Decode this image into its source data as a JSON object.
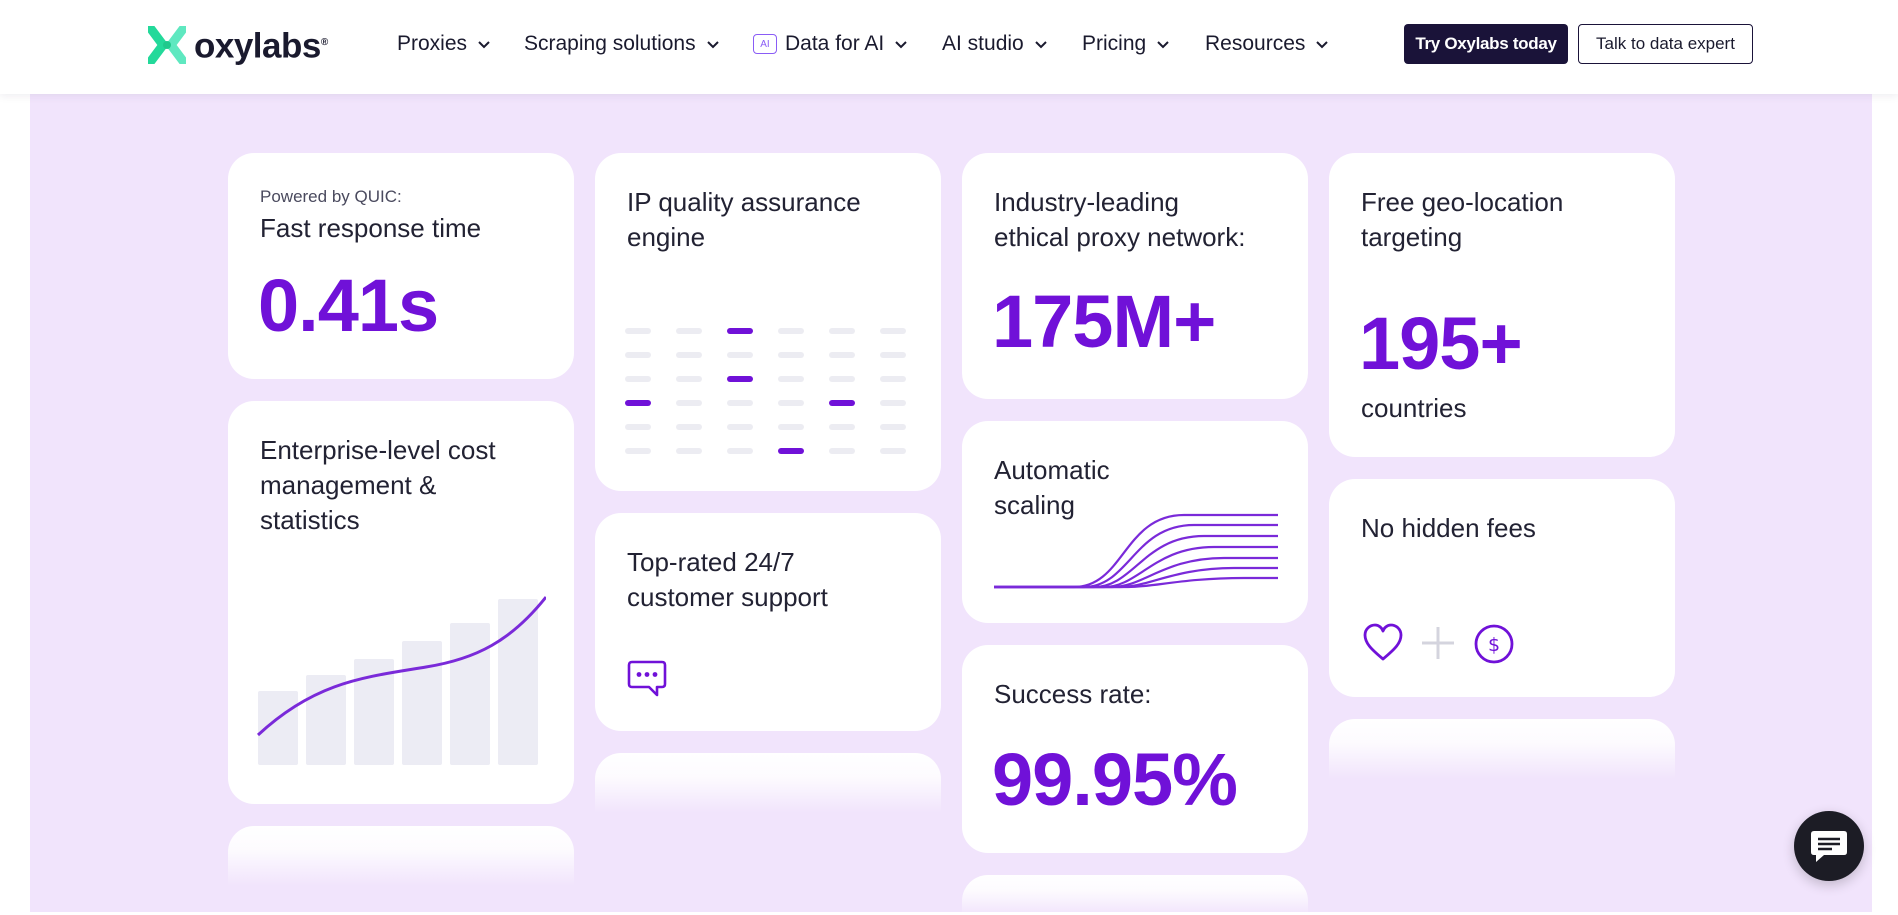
{
  "header": {
    "logo_text": "oxylabs",
    "logo_mark": "®",
    "nav": [
      {
        "label": "Proxies",
        "icon": "chevron-down-icon"
      },
      {
        "label": "Scraping solutions",
        "icon": "chevron-down-icon"
      },
      {
        "label": "Data for AI",
        "badge": "AI",
        "icon": "chevron-down-icon"
      },
      {
        "label": "AI studio",
        "icon": "chevron-down-icon"
      },
      {
        "label": "Pricing",
        "icon": "chevron-down-icon"
      },
      {
        "label": "Resources",
        "icon": "chevron-down-icon"
      }
    ],
    "cta_primary": "Try Oxylabs today",
    "cta_secondary": "Talk to data expert"
  },
  "cards": {
    "response": {
      "small": "Powered by QUIC:",
      "title": "Fast response time",
      "value": "0.41s"
    },
    "ip_quality": {
      "title_line1": "IP quality assurance",
      "title_line2": "engine",
      "icon": "ip-grid-graphic"
    },
    "network": {
      "title_line1": "Industry-leading",
      "title_line2": "ethical proxy network:",
      "value": "175M+"
    },
    "geo": {
      "title_line1": "Free geo-location",
      "title_line2": "targeting",
      "value": "195+",
      "unit": "countries"
    },
    "cost": {
      "title_line1": "Enterprise-level cost",
      "title_line2": "management &",
      "title_line3": "statistics",
      "icon": "growth-chart-graphic"
    },
    "support": {
      "title_line1": "Top-rated 24/7",
      "title_line2": "customer support",
      "icon": "chat-bubble-icon"
    },
    "scaling": {
      "title_line1": "Automatic",
      "title_line2": "scaling",
      "icon": "scaling-curves-graphic"
    },
    "fees": {
      "title": "No hidden fees",
      "icons": [
        "heart-icon",
        "plus-icon",
        "dollar-coin-icon"
      ]
    },
    "success": {
      "title": "Success rate:",
      "value": "99.95%"
    }
  },
  "colors": {
    "accent": "#7011d8",
    "panel_bg": "#f1e4fc",
    "brand_dark": "#1a1339",
    "logo_green": "#2ee6a0"
  },
  "chat_widget": {
    "icon": "chat-widget-icon"
  }
}
